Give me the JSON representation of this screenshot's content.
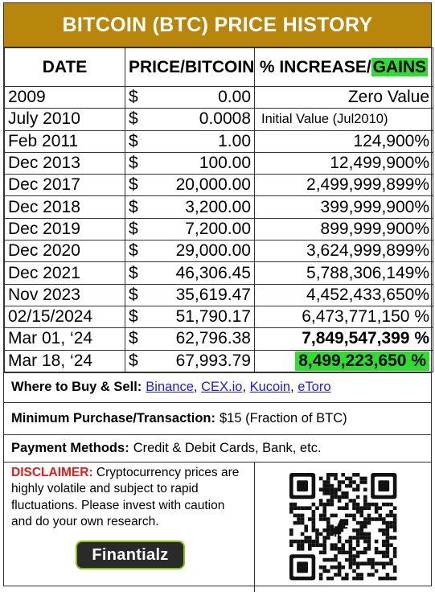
{
  "title": "BITCOIN (BTC) PRICE HISTORY",
  "headers": {
    "date": "DATE",
    "price": "PRICE/BITCOIN",
    "pct_prefix": "% INCREASE/",
    "pct_gains": "GAINS"
  },
  "rows": [
    {
      "date": "2009",
      "currency": "$",
      "price": "0.00",
      "pct": "Zero Value"
    },
    {
      "date": "July 2010",
      "currency": "$",
      "price": "0.0008",
      "pct": "Initial Value (Jul2010)"
    },
    {
      "date": "Feb 2011",
      "currency": "$",
      "price": "1.00",
      "pct": "124,900%"
    },
    {
      "date": "Dec 2013",
      "currency": "$",
      "price": "100.00",
      "pct": "12,499,900%"
    },
    {
      "date": "Dec 2017",
      "currency": "$",
      "price": "20,000.00",
      "pct": "2,499,999,899%"
    },
    {
      "date": "Dec 2018",
      "currency": "$",
      "price": "3,200.00",
      "pct": "399,999,900%"
    },
    {
      "date": "Dec 2019",
      "currency": "$",
      "price": "7,200.00",
      "pct": "899,999,900%"
    },
    {
      "date": "Dec 2020",
      "currency": "$",
      "price": "29,000.00",
      "pct": "3,624,999,899%"
    },
    {
      "date": "Dec 2021",
      "currency": "$",
      "price": "46,306.45",
      "pct": "5,788,306,149%"
    },
    {
      "date": "Nov 2023",
      "currency": "$",
      "price": "35,619.47",
      "pct": "4,452,433,650%"
    },
    {
      "date": "02/15/2024",
      "currency": "$",
      "price": "51,790.17",
      "pct": "6,473,771,150 %"
    },
    {
      "date": "Mar 01, ‘24",
      "currency": "$",
      "price": "62,796.38",
      "pct": "7,849,547,399 %"
    },
    {
      "date": "Mar 18, ‘24",
      "currency": "$",
      "price": "67,993.79",
      "pct": "8,499,223,650 %"
    }
  ],
  "where": {
    "label": "Where to Buy & Sell:",
    "links": [
      "Binance",
      "CEX.io",
      "Kucoin",
      "eToro"
    ]
  },
  "minimum": {
    "label": "Minimum Purchase/Transaction:",
    "value": "$15 (Fraction of BTC)"
  },
  "payment": {
    "label": "Payment Methods:",
    "value": "Credit & Debit Cards, Bank, etc."
  },
  "disclaimer": {
    "label": "DISCLAIMER:",
    "text": "Cryptocurrency prices are highly volatile and subject to rapid fluctuations. Please invest with caution and do your own research."
  },
  "brand": "Finantialz",
  "colors": {
    "header": "#b8860b",
    "highlight": "#2ede2e",
    "link": "#1a1aee",
    "disclaimer": "#e31b1b",
    "brand_border": "#86c40c"
  },
  "qr_icon": "dinosaur-icon"
}
